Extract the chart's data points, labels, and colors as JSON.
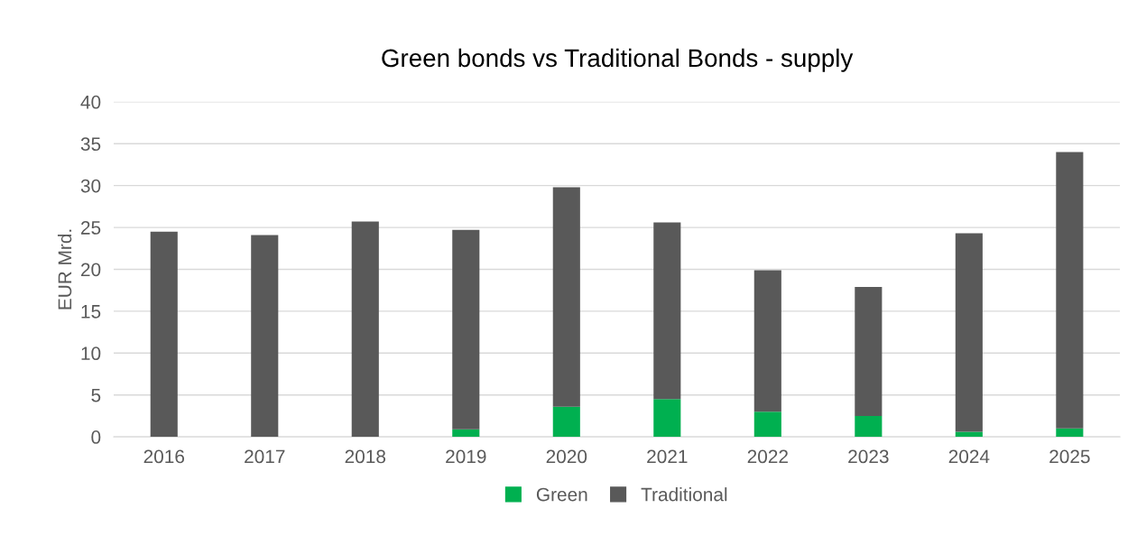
{
  "chart_data": {
    "type": "bar",
    "title": "Green bonds vs Traditional Bonds - supply",
    "ylabel": "EUR Mrd.",
    "categories": [
      "2016",
      "2017",
      "2018",
      "2019",
      "2020",
      "2021",
      "2022",
      "2023",
      "2024",
      "2025"
    ],
    "stacked": true,
    "series": [
      {
        "name": "Green",
        "color": "#00b050",
        "values": [
          0,
          0,
          0,
          0.9,
          3.6,
          4.5,
          3.0,
          2.5,
          0.6,
          1.0
        ]
      },
      {
        "name": "Traditional",
        "color": "#595959",
        "values": [
          24.5,
          24.1,
          25.7,
          23.8,
          26.2,
          21.1,
          16.9,
          15.4,
          23.7,
          33.0
        ]
      }
    ],
    "ylim": [
      0,
      40
    ],
    "yticks": [
      0,
      5,
      10,
      15,
      20,
      25,
      30,
      35,
      40
    ],
    "grid": "y",
    "legend": "bottom"
  }
}
